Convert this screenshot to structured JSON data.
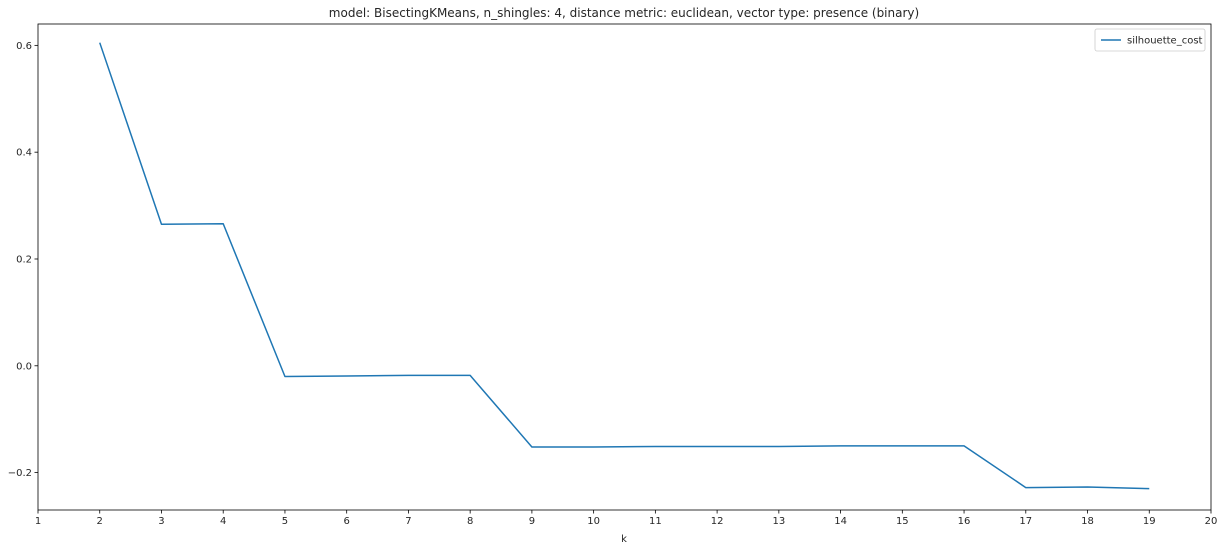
{
  "chart_data": {
    "type": "line",
    "title": "model: BisectingKMeans, n_shingles: 4, distance metric: euclidean, vector type: presence (binary)",
    "xlabel": "k",
    "ylabel": "",
    "xlim": [
      1,
      20
    ],
    "ylim": [
      -0.27,
      0.64
    ],
    "xticks": [
      1,
      2,
      3,
      4,
      5,
      6,
      7,
      8,
      9,
      10,
      11,
      12,
      13,
      14,
      15,
      16,
      17,
      18,
      19,
      20
    ],
    "yticks": [
      -0.2,
      0.0,
      0.2,
      0.4,
      0.6
    ],
    "ytick_labels": [
      "−0.2",
      "0.0",
      "0.2",
      "0.4",
      "0.6"
    ],
    "grid": false,
    "legend": "top-right",
    "series": [
      {
        "name": "silhouette_cost",
        "color": "#1f77b4",
        "x": [
          2,
          3,
          4,
          5,
          6,
          7,
          8,
          9,
          10,
          11,
          12,
          13,
          14,
          15,
          16,
          17,
          18,
          19
        ],
        "y": [
          0.605,
          0.265,
          0.266,
          -0.02,
          -0.019,
          -0.018,
          -0.018,
          -0.152,
          -0.152,
          -0.151,
          -0.151,
          -0.151,
          -0.15,
          -0.15,
          -0.15,
          -0.228,
          -0.227,
          -0.23
        ]
      }
    ]
  }
}
